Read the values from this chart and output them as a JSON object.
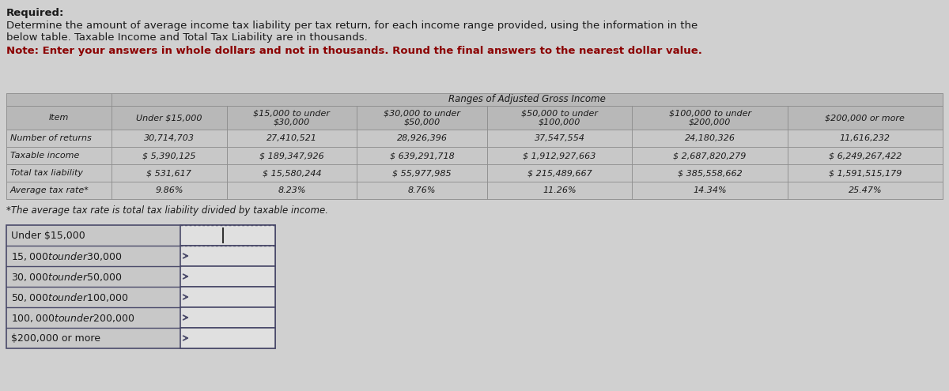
{
  "title_required": "Required:",
  "title_body1": "Determine the amount of average income tax liability per tax return, for each income range provided, using the information in the",
  "title_body2": "below table. Taxable Income and Total Tax Liability are in thousands.",
  "note": "Note: Enter your answers in whole dollars and not in thousands. Round the final answers to the nearest dollar value.",
  "header_ranges": "Ranges of Adjusted Gross Income",
  "col_headers": [
    "Item",
    "Under $15,000",
    "$15,000 to under\n$30,000",
    "$30,000 to under\n$50,000",
    "$50,000 to under\n$100,000",
    "$100,000 to under\n$200,000",
    "$200,000 or more"
  ],
  "row_labels": [
    "Number of returns",
    "Taxable income",
    "Total tax liability",
    "Average tax rate*"
  ],
  "data": [
    [
      "30,714,703",
      "27,410,521",
      "28,926,396",
      "37,547,554",
      "24,180,326",
      "11,616,232"
    ],
    [
      "$ 5,390,125",
      "$ 189,347,926",
      "$ 639,291,718",
      "$ 1,912,927,663",
      "$ 2,687,820,279",
      "$ 6,249,267,422"
    ],
    [
      "$ 531,617",
      "$ 15,580,244",
      "$ 55,977,985",
      "$ 215,489,667",
      "$ 385,558,662",
      "$ 1,591,515,179"
    ],
    [
      "9.86%",
      "8.23%",
      "8.76%",
      "11.26%",
      "14.34%",
      "25.47%"
    ]
  ],
  "footnote": "*The average tax rate is total tax liability divided by taxable income.",
  "answer_rows": [
    "Under $15,000",
    "$15,000 to under $30,000",
    "$30,000 to under $50,000",
    "$50,000 to under $100,000",
    "$100,000 to under $200,000",
    "$200,000 or more"
  ],
  "bg_color": "#d0d0d0",
  "text_color": "#1a1a1a",
  "note_color": "#8B0000",
  "header_cell_bg": "#b8b8b8",
  "data_cell_bg": "#c8c8c8",
  "ans_label_bg": "#c8c8c8",
  "ans_input_bg": "#e0e0e0"
}
